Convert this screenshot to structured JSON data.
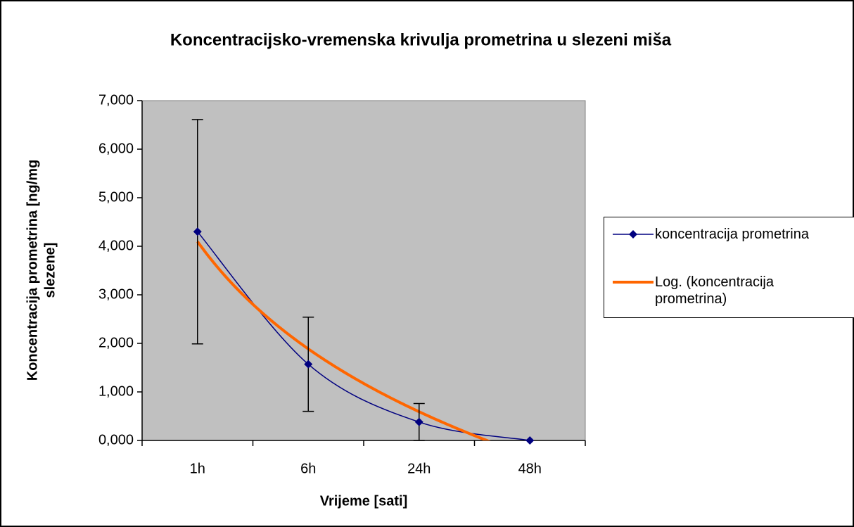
{
  "chart_data": {
    "type": "line",
    "title": "Koncentracijsko-vremenska krivulja prometrina u slezeni miša",
    "xlabel": "Vrijeme [sati]",
    "ylabel": [
      "Koncentracija prometrina [ng/mg",
      "slezene]"
    ],
    "categories": [
      "1h",
      "6h",
      "24h",
      "48h"
    ],
    "series": [
      {
        "name": "koncentracija prometrina",
        "color": "#000080",
        "values": [
          4.3,
          1.57,
          0.38,
          0.0
        ],
        "errors": [
          2.31,
          0.97,
          0.38,
          0.0
        ]
      }
    ],
    "trendline": {
      "name": "Log. (koncentracija prometrina)",
      "color": "#ff6600",
      "type": "log"
    },
    "ylim": [
      0,
      7
    ],
    "yticks": [
      {
        "value": 0,
        "label": "0,000"
      },
      {
        "value": 1,
        "label": "1,000"
      },
      {
        "value": 2,
        "label": "2,000"
      },
      {
        "value": 3,
        "label": "3,000"
      },
      {
        "value": 4,
        "label": "4,000"
      },
      {
        "value": 5,
        "label": "5,000"
      },
      {
        "value": 6,
        "label": "6,000"
      },
      {
        "value": 7,
        "label": "7,000"
      }
    ],
    "plot_background": "#c0c0c0",
    "legend": "right"
  }
}
